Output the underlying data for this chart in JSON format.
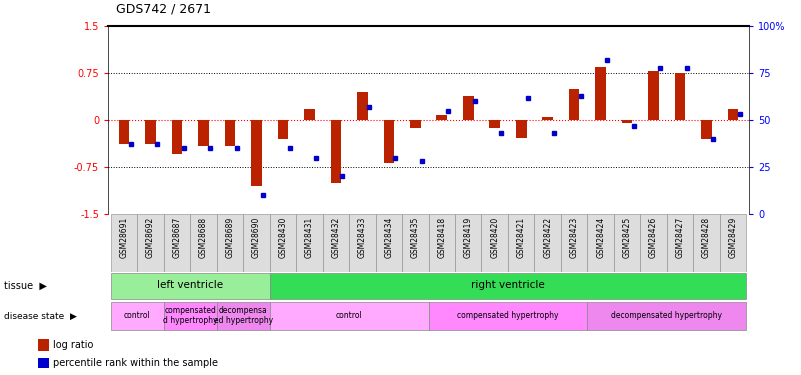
{
  "title": "GDS742 / 2671",
  "samples": [
    "GSM28691",
    "GSM28692",
    "GSM28687",
    "GSM28688",
    "GSM28689",
    "GSM28690",
    "GSM28430",
    "GSM28431",
    "GSM28432",
    "GSM28433",
    "GSM28434",
    "GSM28435",
    "GSM28418",
    "GSM28419",
    "GSM28420",
    "GSM28421",
    "GSM28422",
    "GSM28423",
    "GSM28424",
    "GSM28425",
    "GSM28426",
    "GSM28427",
    "GSM28428",
    "GSM28429"
  ],
  "log_ratio": [
    -0.38,
    -0.38,
    -0.55,
    -0.42,
    -0.42,
    -1.05,
    -0.3,
    0.17,
    -1.0,
    0.45,
    -0.68,
    -0.12,
    0.08,
    0.38,
    -0.12,
    -0.28,
    0.05,
    0.5,
    0.85,
    -0.05,
    0.78,
    0.75,
    -0.3,
    0.18
  ],
  "pct_rank": [
    37,
    37,
    35,
    35,
    35,
    10,
    35,
    30,
    20,
    57,
    30,
    28,
    55,
    60,
    43,
    62,
    43,
    63,
    82,
    47,
    78,
    78,
    40,
    53
  ],
  "tissue_labels": [
    {
      "label": "left ventricle",
      "start": 0,
      "end": 6,
      "color": "#99EE99"
    },
    {
      "label": "right ventricle",
      "start": 6,
      "end": 24,
      "color": "#33DD55"
    }
  ],
  "disease_labels": [
    {
      "label": "control",
      "start": 0,
      "end": 2,
      "color": "#FFAAFF"
    },
    {
      "label": "compensated\nd hypertrophy",
      "start": 2,
      "end": 4,
      "color": "#FF88FF"
    },
    {
      "label": "decompensa\ned hypertrophy",
      "start": 4,
      "end": 6,
      "color": "#EE88EE"
    },
    {
      "label": "control",
      "start": 6,
      "end": 12,
      "color": "#FFAAFF"
    },
    {
      "label": "compensated hypertrophy",
      "start": 12,
      "end": 18,
      "color": "#FF88FF"
    },
    {
      "label": "decompensated hypertrophy",
      "start": 18,
      "end": 24,
      "color": "#EE88EE"
    }
  ],
  "ylim": [
    -1.5,
    1.5
  ],
  "yticks": [
    -1.5,
    -0.75,
    0,
    0.75,
    1.5
  ],
  "ytick_labels": [
    "-1.5",
    "-0.75",
    "0",
    "0.75",
    "1.5"
  ],
  "y2ticks": [
    0,
    25,
    50,
    75,
    100
  ],
  "y2tick_labels": [
    "0",
    "25",
    "50",
    "75",
    "100%"
  ],
  "bar_color": "#BB2200",
  "dot_color": "#0000CC",
  "bg_color": "#FFFFFF"
}
